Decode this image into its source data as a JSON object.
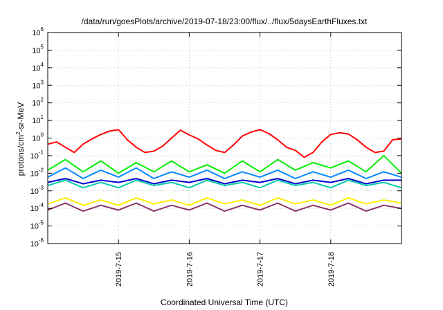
{
  "chart_data": {
    "type": "line",
    "title": "/data/run/goesPlots/archive/2019-07-18/23:00/flux/../flux/5daysEarthFluxes.txt",
    "xlabel": "Coordinated Universal Time (UTC)",
    "ylabel_parts": {
      "main": "protons/cm",
      "sup": "2",
      "rest": "-sr-MeV"
    },
    "y_scale": "log",
    "ylim": [
      1e-06,
      1000000.0
    ],
    "y_ticks": [
      {
        "value": 1e-06,
        "base": "10",
        "exp": "-6"
      },
      {
        "value": 1e-05,
        "base": "10",
        "exp": "-5"
      },
      {
        "value": 0.0001,
        "base": "10",
        "exp": "-4"
      },
      {
        "value": 0.001,
        "base": "10",
        "exp": "-3"
      },
      {
        "value": 0.01,
        "base": "10",
        "exp": "-2"
      },
      {
        "value": 0.1,
        "base": "10",
        "exp": "-1"
      },
      {
        "value": 1,
        "base": "10",
        "exp": "0"
      },
      {
        "value": 10,
        "base": "10",
        "exp": "1"
      },
      {
        "value": 100,
        "base": "10",
        "exp": "2"
      },
      {
        "value": 1000,
        "base": "10",
        "exp": "3"
      },
      {
        "value": 10000,
        "base": "10",
        "exp": "4"
      },
      {
        "value": 100000,
        "base": "10",
        "exp": "5"
      },
      {
        "value": 1000000,
        "base": "10",
        "exp": "6"
      }
    ],
    "xlim": [
      "2019-07-14T00:00",
      "2019-07-19T00:00"
    ],
    "x_ticks": [
      {
        "date": "2019-07-15T00:00",
        "label": "2019-7-15"
      },
      {
        "date": "2019-07-16T00:00",
        "label": "2019-7-16"
      },
      {
        "date": "2019-07-17T00:00",
        "label": "2019-7-17"
      },
      {
        "date": "2019-07-18T00:00",
        "label": "2019-7-18"
      }
    ],
    "grid": true,
    "legend": "none",
    "series": [
      {
        "color": "#ff0000",
        "x": [
          "2019-07-14T00:00",
          "2019-07-14T03:00",
          "2019-07-14T06:00",
          "2019-07-14T09:00",
          "2019-07-14T12:00",
          "2019-07-14T15:00",
          "2019-07-14T18:00",
          "2019-07-14T21:00",
          "2019-07-15T00:00",
          "2019-07-15T03:00",
          "2019-07-15T06:00",
          "2019-07-15T09:00",
          "2019-07-15T12:00",
          "2019-07-15T15:00",
          "2019-07-15T18:00",
          "2019-07-15T21:00",
          "2019-07-16T00:00",
          "2019-07-16T03:00",
          "2019-07-16T06:00",
          "2019-07-16T09:00",
          "2019-07-16T12:00",
          "2019-07-16T15:00",
          "2019-07-16T18:00",
          "2019-07-16T21:00",
          "2019-07-17T00:00",
          "2019-07-17T03:00",
          "2019-07-17T06:00",
          "2019-07-17T09:00",
          "2019-07-17T12:00",
          "2019-07-17T15:00",
          "2019-07-17T18:00",
          "2019-07-17T21:00",
          "2019-07-18T00:00",
          "2019-07-18T03:00",
          "2019-07-18T06:00",
          "2019-07-18T09:00",
          "2019-07-18T12:00",
          "2019-07-18T15:00",
          "2019-07-18T18:00",
          "2019-07-18T21:00",
          "2019-07-19T00:00"
        ],
        "y": [
          0.45,
          0.6,
          0.3,
          0.15,
          0.45,
          0.9,
          1.6,
          2.5,
          3.0,
          0.8,
          0.3,
          0.15,
          0.18,
          0.35,
          1.0,
          2.8,
          1.5,
          0.9,
          0.4,
          0.2,
          0.15,
          0.4,
          1.3,
          2.2,
          3.0,
          1.8,
          0.8,
          0.3,
          0.2,
          0.08,
          0.15,
          0.6,
          1.6,
          2.0,
          1.7,
          0.8,
          0.3,
          0.15,
          0.18,
          0.8,
          0.9
        ]
      },
      {
        "color": "#00ee00",
        "x": [
          "2019-07-14T00:00",
          "2019-07-14T06:00",
          "2019-07-14T12:00",
          "2019-07-14T18:00",
          "2019-07-15T00:00",
          "2019-07-15T06:00",
          "2019-07-15T12:00",
          "2019-07-15T18:00",
          "2019-07-16T00:00",
          "2019-07-16T06:00",
          "2019-07-16T12:00",
          "2019-07-16T18:00",
          "2019-07-17T00:00",
          "2019-07-17T06:00",
          "2019-07-17T12:00",
          "2019-07-17T18:00",
          "2019-07-18T00:00",
          "2019-07-18T06:00",
          "2019-07-18T12:00",
          "2019-07-18T18:00",
          "2019-07-19T00:00"
        ],
        "y": [
          0.015,
          0.06,
          0.012,
          0.05,
          0.01,
          0.04,
          0.012,
          0.05,
          0.012,
          0.03,
          0.01,
          0.05,
          0.012,
          0.06,
          0.015,
          0.04,
          0.02,
          0.05,
          0.012,
          0.1,
          0.01
        ]
      },
      {
        "color": "#00ccaa",
        "x": [
          "2019-07-14T00:00",
          "2019-07-14T06:00",
          "2019-07-14T12:00",
          "2019-07-14T18:00",
          "2019-07-15T00:00",
          "2019-07-15T06:00",
          "2019-07-15T12:00",
          "2019-07-15T18:00",
          "2019-07-16T00:00",
          "2019-07-16T06:00",
          "2019-07-16T12:00",
          "2019-07-16T18:00",
          "2019-07-17T00:00",
          "2019-07-17T06:00",
          "2019-07-17T12:00",
          "2019-07-17T18:00",
          "2019-07-18T00:00",
          "2019-07-18T06:00",
          "2019-07-18T12:00",
          "2019-07-18T18:00",
          "2019-07-19T00:00"
        ],
        "y": [
          0.002,
          0.004,
          0.0015,
          0.003,
          0.0015,
          0.004,
          0.002,
          0.003,
          0.0015,
          0.004,
          0.002,
          0.003,
          0.0015,
          0.004,
          0.002,
          0.003,
          0.0015,
          0.004,
          0.002,
          0.003,
          0.0015
        ]
      },
      {
        "color": "#0088ff",
        "x": [
          "2019-07-14T00:00",
          "2019-07-14T06:00",
          "2019-07-14T12:00",
          "2019-07-14T18:00",
          "2019-07-15T00:00",
          "2019-07-15T06:00",
          "2019-07-15T12:00",
          "2019-07-15T18:00",
          "2019-07-16T00:00",
          "2019-07-16T06:00",
          "2019-07-16T12:00",
          "2019-07-16T18:00",
          "2019-07-17T00:00",
          "2019-07-17T06:00",
          "2019-07-17T12:00",
          "2019-07-17T18:00",
          "2019-07-18T00:00",
          "2019-07-18T06:00",
          "2019-07-18T12:00",
          "2019-07-18T18:00",
          "2019-07-19T00:00"
        ],
        "y": [
          0.006,
          0.02,
          0.005,
          0.015,
          0.006,
          0.02,
          0.005,
          0.012,
          0.006,
          0.015,
          0.005,
          0.012,
          0.006,
          0.015,
          0.005,
          0.012,
          0.006,
          0.015,
          0.005,
          0.012,
          0.006
        ]
      },
      {
        "color": "#0000cc",
        "x": [
          "2019-07-14T00:00",
          "2019-07-14T06:00",
          "2019-07-14T12:00",
          "2019-07-14T18:00",
          "2019-07-15T00:00",
          "2019-07-15T06:00",
          "2019-07-15T12:00",
          "2019-07-15T18:00",
          "2019-07-16T00:00",
          "2019-07-16T06:00",
          "2019-07-16T12:00",
          "2019-07-16T18:00",
          "2019-07-17T00:00",
          "2019-07-17T06:00",
          "2019-07-17T12:00",
          "2019-07-17T18:00",
          "2019-07-18T00:00",
          "2019-07-18T06:00",
          "2019-07-18T12:00",
          "2019-07-18T18:00",
          "2019-07-19T00:00"
        ],
        "y": [
          0.003,
          0.005,
          0.0025,
          0.004,
          0.003,
          0.005,
          0.0025,
          0.004,
          0.003,
          0.005,
          0.0025,
          0.004,
          0.003,
          0.005,
          0.0025,
          0.004,
          0.003,
          0.005,
          0.0025,
          0.004,
          0.004
        ]
      },
      {
        "color": "#ffee00",
        "x": [
          "2019-07-14T00:00",
          "2019-07-14T06:00",
          "2019-07-14T12:00",
          "2019-07-14T18:00",
          "2019-07-15T00:00",
          "2019-07-15T06:00",
          "2019-07-15T12:00",
          "2019-07-15T18:00",
          "2019-07-16T00:00",
          "2019-07-16T06:00",
          "2019-07-16T12:00",
          "2019-07-16T18:00",
          "2019-07-17T00:00",
          "2019-07-17T06:00",
          "2019-07-17T12:00",
          "2019-07-17T18:00",
          "2019-07-18T00:00",
          "2019-07-18T06:00",
          "2019-07-18T12:00",
          "2019-07-18T18:00",
          "2019-07-19T00:00"
        ],
        "y": [
          0.00018,
          0.0004,
          0.00015,
          0.0003,
          0.00015,
          0.0004,
          0.00018,
          0.0003,
          0.00015,
          0.0004,
          0.00018,
          0.0003,
          0.00015,
          0.0004,
          0.00018,
          0.0003,
          0.00015,
          0.0004,
          0.00018,
          0.0003,
          0.0002
        ]
      },
      {
        "color": "#883366",
        "x": [
          "2019-07-14T00:00",
          "2019-07-14T06:00",
          "2019-07-14T12:00",
          "2019-07-14T18:00",
          "2019-07-15T00:00",
          "2019-07-15T06:00",
          "2019-07-15T12:00",
          "2019-07-15T18:00",
          "2019-07-16T00:00",
          "2019-07-16T06:00",
          "2019-07-16T12:00",
          "2019-07-16T18:00",
          "2019-07-17T00:00",
          "2019-07-17T06:00",
          "2019-07-17T12:00",
          "2019-07-17T18:00",
          "2019-07-18T00:00",
          "2019-07-18T06:00",
          "2019-07-18T12:00",
          "2019-07-18T18:00",
          "2019-07-19T00:00"
        ],
        "y": [
          8e-05,
          0.0002,
          7e-05,
          0.00015,
          8e-05,
          0.0002,
          7e-05,
          0.00015,
          8e-05,
          0.0002,
          7e-05,
          0.00015,
          8e-05,
          0.0002,
          7e-05,
          0.00015,
          8e-05,
          0.0002,
          7e-05,
          0.00015,
          0.0001
        ]
      }
    ]
  }
}
